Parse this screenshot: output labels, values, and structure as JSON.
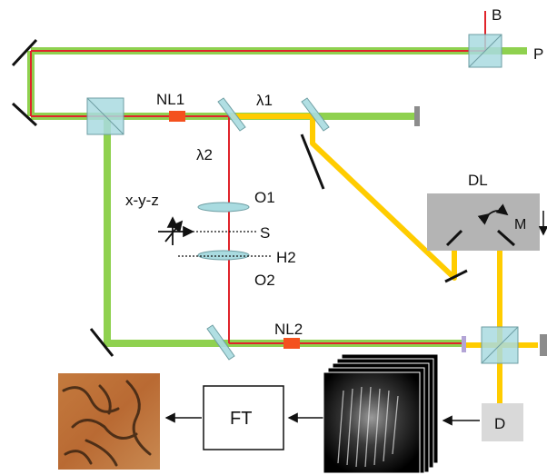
{
  "labels": {
    "B": "B",
    "P": "P",
    "NL1": "NL1",
    "lambda1": "λ1",
    "lambda2": "λ2",
    "DL": "DL",
    "M": "M",
    "xyz": "x-y-z",
    "O1": "O1",
    "S": "S",
    "H2": "H2",
    "O2": "O2",
    "NL2": "NL2",
    "FT": "FT",
    "D": "D"
  },
  "colors": {
    "green_beam": "#8fd14f",
    "red_beam": "#e0242b",
    "yellow_beam": "#ffcc00",
    "splitter_fill": "#a9dbe0",
    "delay_line_box": "#b4b4b4",
    "crystal": "#f4511e",
    "detector": "#d9d9d9"
  },
  "icons": {
    "stage": "xyz-translation-stage-icon",
    "reconstruction": "reconstructed-image",
    "hologram_stack": "hologram-frame-stack"
  }
}
